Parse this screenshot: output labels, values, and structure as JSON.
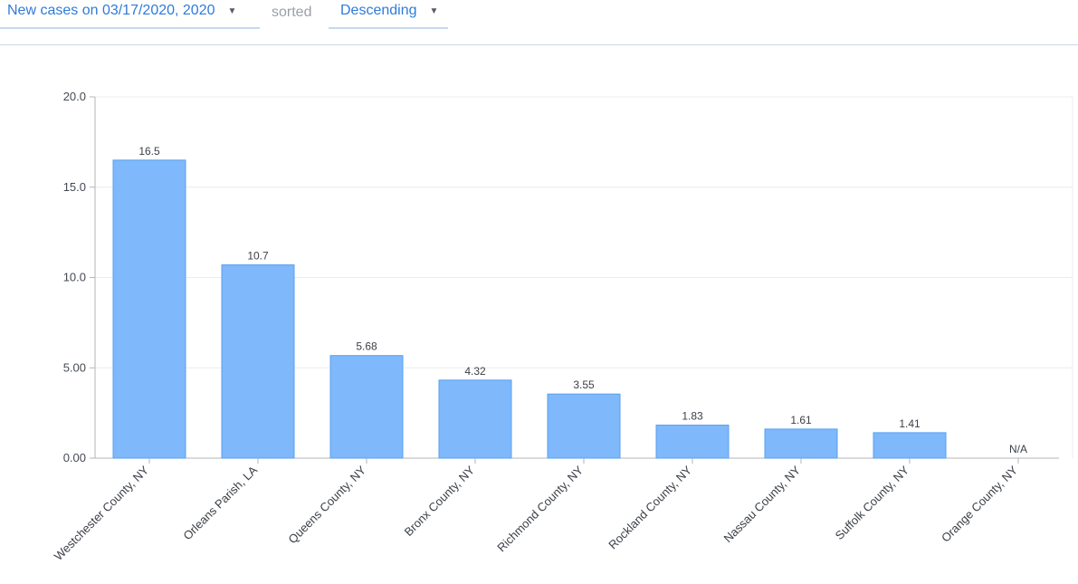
{
  "toolbar": {
    "metric_label": "New cases on 03/17/2020, 2020",
    "sorted_label": "sorted",
    "order_label": "Descending"
  },
  "colors": {
    "bar": "#7fb8fb",
    "bar_stroke": "#5aa1f2",
    "grid": "#ececec",
    "axis": "#b5b5b5",
    "link": "#2f7bd8"
  },
  "chart_data": {
    "type": "bar",
    "categories": [
      "Westchester County, NY",
      "Orleans Parish, LA",
      "Queens County, NY",
      "Bronx County, NY",
      "Richmond County, NY",
      "Rockland County, NY",
      "Nassau County, NY",
      "Suffolk County, NY",
      "Orange County, NY"
    ],
    "values": [
      16.5,
      10.7,
      5.68,
      4.32,
      3.55,
      1.83,
      1.61,
      1.41,
      null
    ],
    "value_labels": [
      "16.5",
      "10.7",
      "5.68",
      "4.32",
      "3.55",
      "1.83",
      "1.61",
      "1.41",
      "N/A"
    ],
    "ylim": [
      0,
      20
    ],
    "yticks": [
      0,
      5,
      10,
      15,
      20
    ],
    "ytick_labels": [
      "0.00",
      "5.00",
      "10.0",
      "15.0",
      "20.0"
    ],
    "grid": true,
    "title": "",
    "xlabel": "",
    "ylabel": ""
  }
}
